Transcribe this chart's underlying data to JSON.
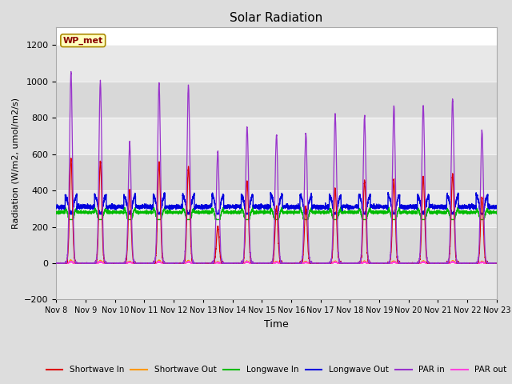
{
  "title": "Solar Radiation",
  "ylabel": "Radiation (W/m2, umol/m2/s)",
  "xlabel": "Time",
  "ylim": [
    -200,
    1300
  ],
  "yticks": [
    -200,
    0,
    200,
    400,
    600,
    800,
    1000,
    1200
  ],
  "start_day": 8,
  "end_day": 23,
  "n_days": 15,
  "colors": {
    "shortwave_in": "#dd0000",
    "shortwave_out": "#ff9900",
    "longwave_in": "#00bb00",
    "longwave_out": "#0000dd",
    "par_in": "#9933cc",
    "par_out": "#ff44dd"
  },
  "legend_labels": [
    "Shortwave In",
    "Shortwave Out",
    "Longwave In",
    "Longwave Out",
    "PAR in",
    "PAR out"
  ],
  "station_label": "WP_met",
  "fig_facecolor": "#dddddd",
  "plot_facecolor": "#ffffff",
  "band_colors": [
    "#e8e8e8",
    "#d8d8d8"
  ],
  "par_in_peaks": [
    1050,
    1000,
    660,
    990,
    980,
    615,
    750,
    705,
    720,
    820,
    810,
    865,
    870,
    905,
    730
  ],
  "shortwave_in_peaks": [
    575,
    560,
    395,
    550,
    530,
    200,
    450,
    310,
    310,
    410,
    450,
    460,
    470,
    490,
    360
  ],
  "par_out_peaks": [
    90,
    85,
    55,
    85,
    80,
    35,
    60,
    50,
    50,
    65,
    65,
    65,
    65,
    75,
    55
  ],
  "shortwave_out_peaks": [
    90,
    85,
    55,
    85,
    80,
    35,
    60,
    50,
    50,
    65,
    65,
    65,
    65,
    75,
    55
  ],
  "lw_in_night": 280,
  "lw_in_day": 305,
  "lw_out_night": 310,
  "lw_out_day": 380
}
